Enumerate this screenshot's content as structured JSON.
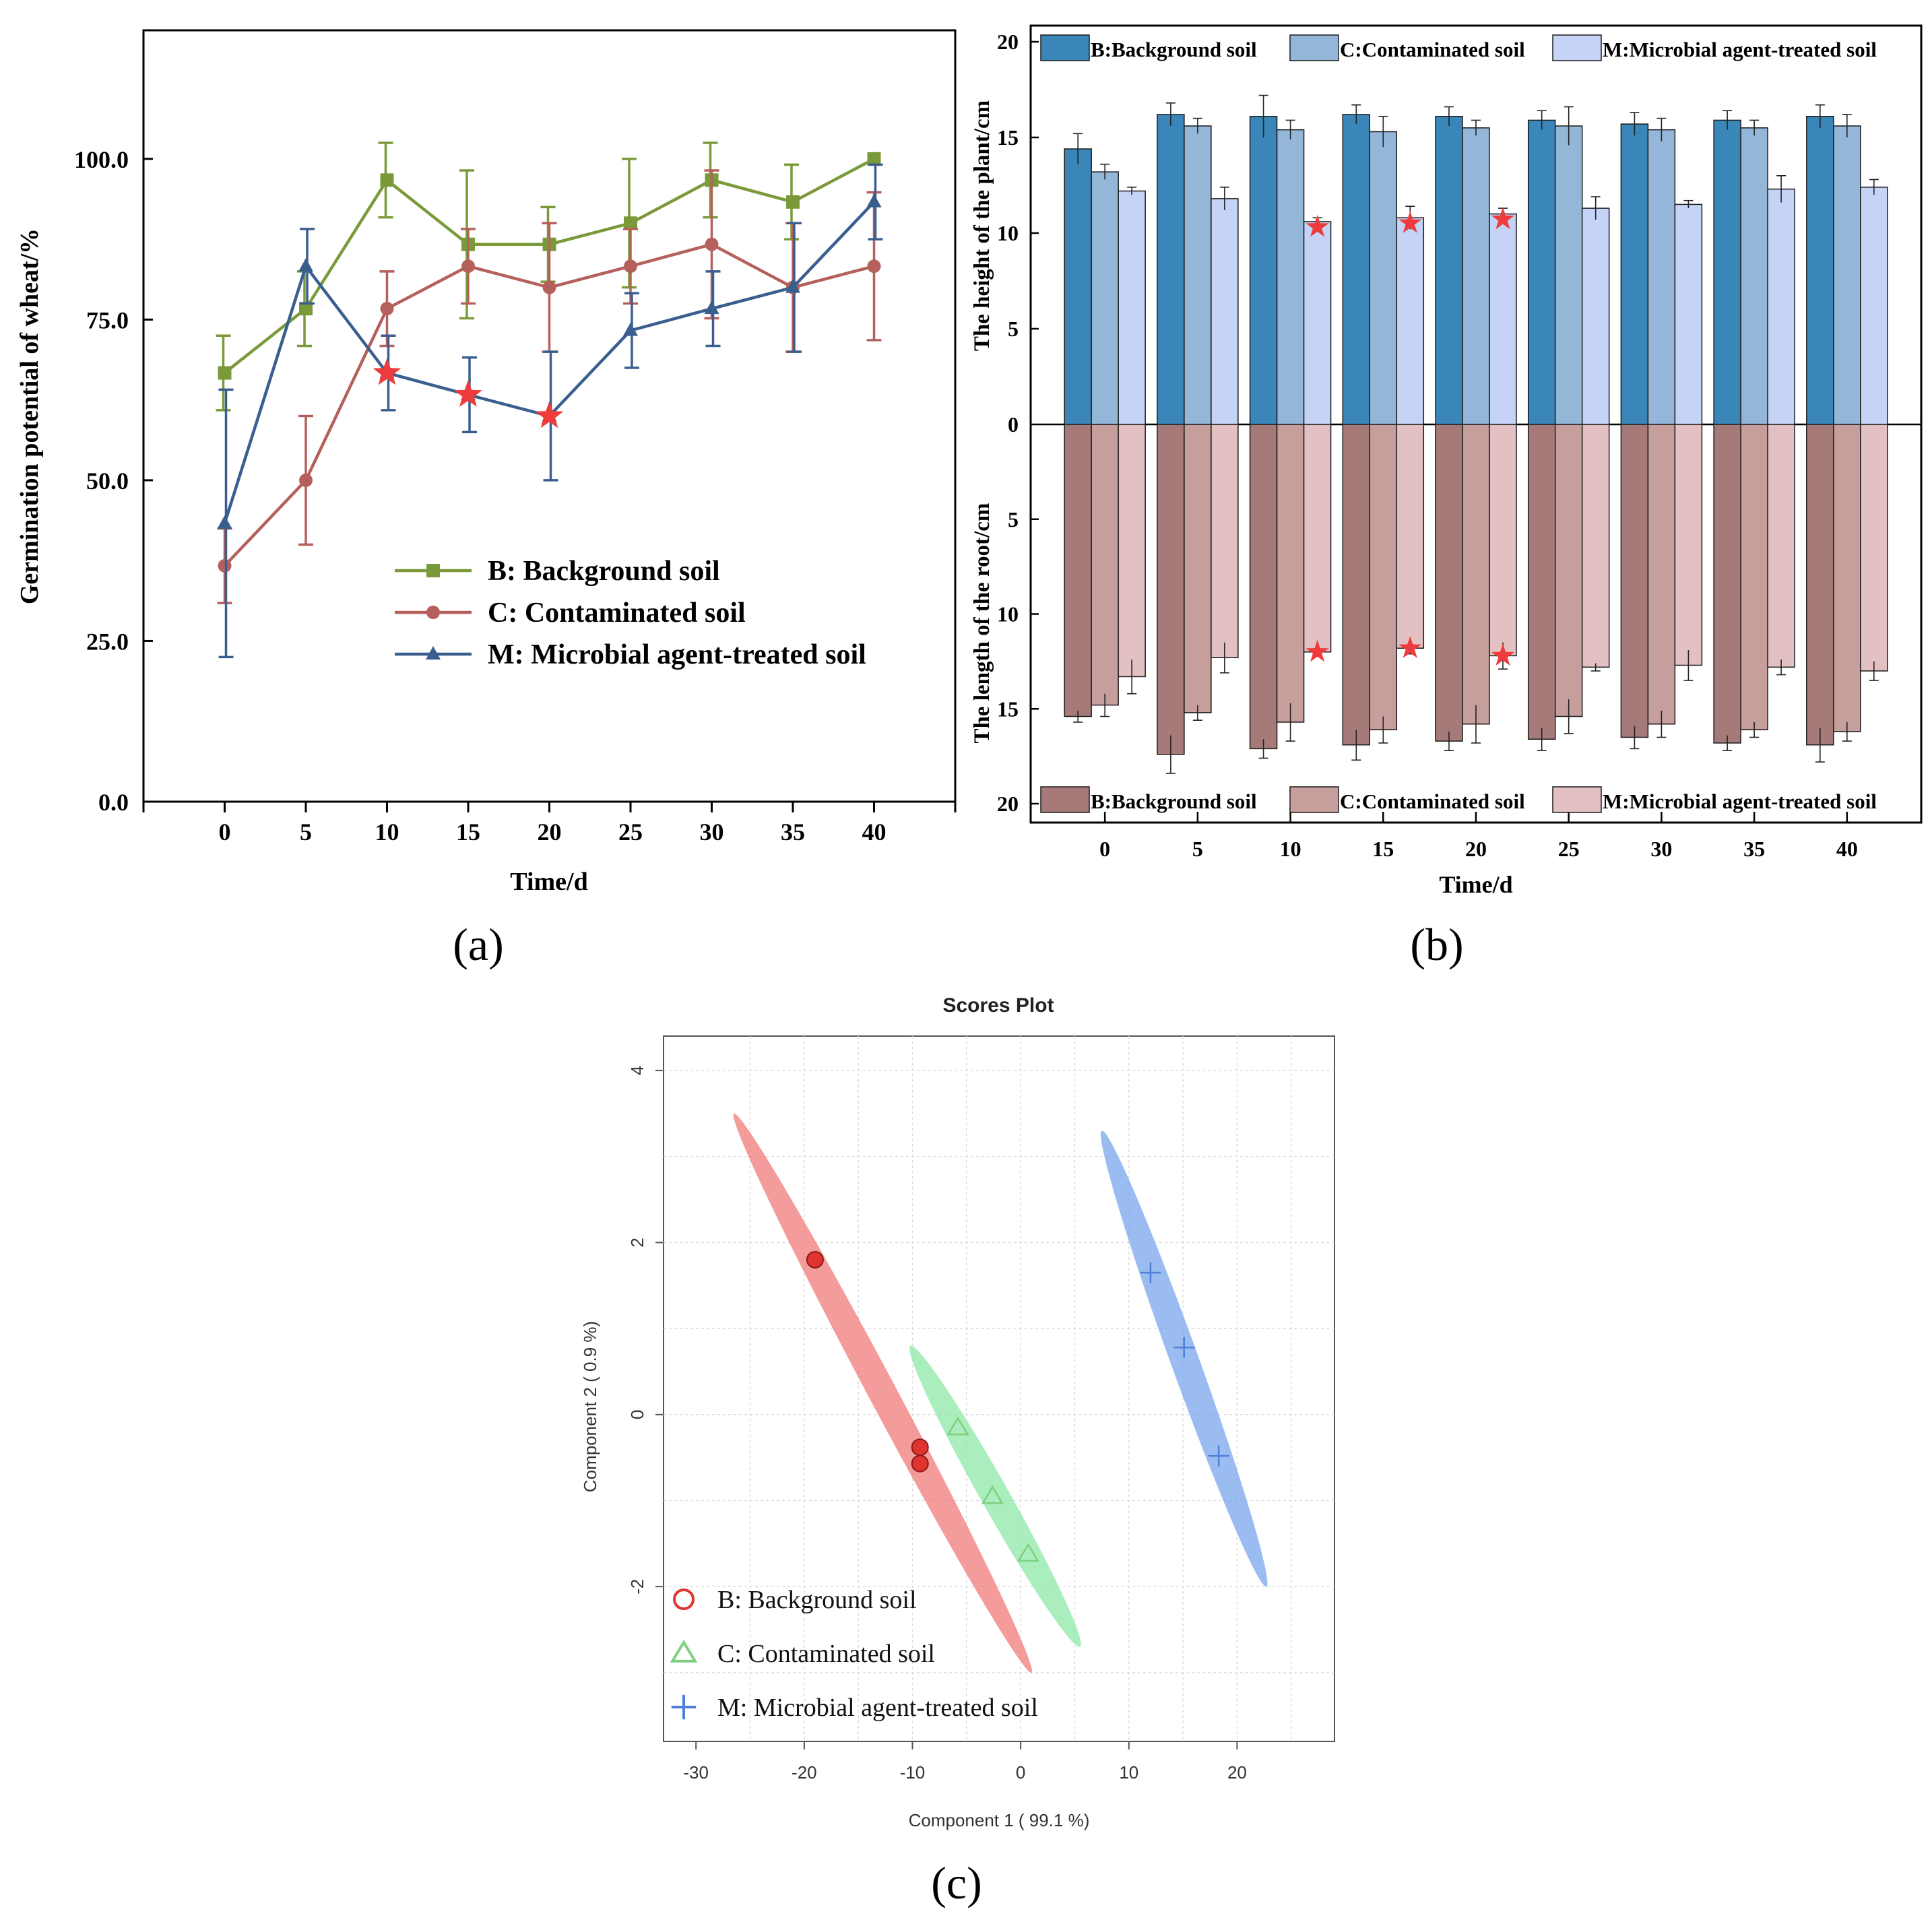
{
  "figure_labels": [
    "(a)",
    "(b)",
    "(c)"
  ],
  "chart_data": [
    {
      "id": "a",
      "type": "line",
      "title": "",
      "xlabel": "Time/d",
      "ylabel": "Germination potential of wheat/%",
      "x": [
        0,
        5,
        10,
        15,
        20,
        25,
        30,
        35,
        40
      ],
      "x_tick_labels": [
        "0",
        "5",
        "10",
        "15",
        "20",
        "25",
        "30",
        "35",
        "40"
      ],
      "xlim": [
        -5,
        45
      ],
      "ylim": [
        0,
        120
      ],
      "y_ticks": [
        0,
        25,
        50,
        75,
        100
      ],
      "y_tick_labels": [
        "0.0",
        "25.0",
        "50.0",
        "75.0",
        "100.0"
      ],
      "grid": false,
      "legend_position": "lower-right",
      "series": [
        {
          "name": "B: Background soil",
          "marker": "square",
          "color": "#7a9a3a",
          "values": [
            66.7,
            76.7,
            96.7,
            86.7,
            86.7,
            90.0,
            96.7,
            93.3,
            100.0
          ],
          "errors": [
            5.8,
            5.8,
            5.8,
            11.5,
            5.8,
            10.0,
            5.8,
            5.8,
            0
          ]
        },
        {
          "name": "C: Contaminated soil",
          "marker": "circle",
          "color": "#b5605c",
          "values": [
            36.7,
            50.0,
            76.7,
            83.3,
            80.0,
            83.3,
            86.7,
            80.0,
            83.3
          ],
          "errors": [
            5.8,
            10.0,
            5.8,
            5.8,
            10.0,
            5.8,
            11.5,
            10.0,
            11.5
          ]
        },
        {
          "name": "M: Microbial agent-treated soil",
          "marker": "triangle",
          "color": "#3a5f8f",
          "values": [
            43.3,
            83.3,
            66.7,
            63.3,
            60.0,
            73.3,
            76.7,
            80.0,
            93.3
          ],
          "errors": [
            20.8,
            5.8,
            5.8,
            5.8,
            10.0,
            5.8,
            5.8,
            10.0,
            5.8
          ]
        }
      ],
      "annotations": [
        {
          "series": "M: Microbial agent-treated soil",
          "x": 10,
          "y": 66.7,
          "symbol": "star"
        },
        {
          "series": "M: Microbial agent-treated soil",
          "x": 15,
          "y": 63.3,
          "symbol": "star"
        },
        {
          "series": "M: Microbial agent-treated soil",
          "x": 20,
          "y": 60.0,
          "symbol": "star"
        }
      ]
    },
    {
      "id": "b",
      "type": "bar",
      "title": "",
      "xlabel": "Time/d",
      "ylabel_top": "The height of the plant/cm",
      "ylabel_bottom": "The length of the root/cm",
      "categories": [
        "0",
        "5",
        "10",
        "15",
        "20",
        "25",
        "30",
        "35",
        "40"
      ],
      "ylim_top": [
        0,
        20
      ],
      "ylim_bottom": [
        0,
        20
      ],
      "y_ticks": [
        0,
        5,
        10,
        15,
        20
      ],
      "y_tick_labels": [
        "0",
        "5",
        "10",
        "15",
        "20"
      ],
      "grid": false,
      "legend_position_top": "top",
      "legend_position_bottom": "bottom",
      "series_top": [
        {
          "name": "B:Background soil",
          "color": "#3a86b8",
          "values": [
            14.4,
            16.2,
            16.1,
            16.2,
            16.1,
            15.9,
            15.7,
            15.9,
            16.1
          ],
          "errors": [
            0.8,
            0.6,
            1.1,
            0.5,
            0.5,
            0.5,
            0.6,
            0.5,
            0.6
          ]
        },
        {
          "name": "C:Contaminated soil",
          "color": "#93b6d9",
          "values": [
            13.2,
            15.6,
            15.4,
            15.3,
            15.5,
            15.6,
            15.4,
            15.5,
            15.6
          ],
          "errors": [
            0.4,
            0.4,
            0.5,
            0.8,
            0.4,
            1.0,
            0.6,
            0.4,
            0.6
          ]
        },
        {
          "name": "M:Microbial agent-treated soil",
          "color": "#c5d4f6",
          "values": [
            12.2,
            11.8,
            10.6,
            10.8,
            11.0,
            11.3,
            11.5,
            12.3,
            12.4
          ],
          "errors": [
            0.2,
            0.6,
            0.2,
            0.6,
            0.3,
            0.6,
            0.2,
            0.7,
            0.4
          ]
        }
      ],
      "series_bottom": [
        {
          "name": "B:Background soil",
          "color": "#a57a78",
          "values": [
            15.4,
            17.4,
            17.1,
            16.9,
            16.7,
            16.6,
            16.5,
            16.8,
            16.9
          ],
          "errors": [
            0.3,
            1.0,
            0.5,
            0.8,
            0.5,
            0.6,
            0.6,
            0.4,
            0.9
          ]
        },
        {
          "name": "C:Contaminated soil",
          "color": "#c69e9b",
          "values": [
            14.8,
            15.2,
            15.7,
            16.1,
            15.8,
            15.4,
            15.8,
            16.1,
            16.2
          ],
          "errors": [
            0.6,
            0.4,
            1.0,
            0.7,
            1.0,
            0.9,
            0.7,
            0.4,
            0.5
          ]
        },
        {
          "name": "M:Microbial agent-treated soil",
          "color": "#e3c1c2",
          "values": [
            13.3,
            12.3,
            12.0,
            11.8,
            12.2,
            12.8,
            12.7,
            12.8,
            13.0
          ],
          "errors": [
            0.9,
            0.8,
            0.2,
            0.3,
            0.7,
            0.2,
            0.8,
            0.4,
            0.5
          ]
        }
      ],
      "annotations": [
        {
          "panel": "top",
          "category": "10",
          "series": "M:Microbial agent-treated soil",
          "symbol": "star"
        },
        {
          "panel": "top",
          "category": "15",
          "series": "M:Microbial agent-treated soil",
          "symbol": "star"
        },
        {
          "panel": "top",
          "category": "20",
          "series": "M:Microbial agent-treated soil",
          "symbol": "star"
        },
        {
          "panel": "bottom",
          "category": "10",
          "series": "M:Microbial agent-treated soil",
          "symbol": "star"
        },
        {
          "panel": "bottom",
          "category": "15",
          "series": "M:Microbial agent-treated soil",
          "symbol": "star"
        },
        {
          "panel": "bottom",
          "category": "20",
          "series": "M:Microbial agent-treated soil",
          "symbol": "star"
        }
      ]
    },
    {
      "id": "c",
      "type": "scatter",
      "title": "Scores Plot",
      "xlabel": "Component 1 ( 99.1 %)",
      "ylabel": "Component 2 ( 0.9 %)",
      "xlim": [
        -33,
        29
      ],
      "ylim": [
        -3.8,
        4.4
      ],
      "x_ticks": [
        -30,
        -20,
        -10,
        0,
        10,
        20
      ],
      "x_tick_labels": [
        "-30",
        "-20",
        "-10",
        "0",
        "10",
        "20"
      ],
      "y_ticks": [
        -2,
        0,
        2,
        4
      ],
      "y_tick_labels": [
        "-2",
        "0",
        "2",
        "4"
      ],
      "grid": true,
      "legend_position": "bottom-left",
      "series": [
        {
          "name": "B: Background soil",
          "marker": "circle",
          "color": "#e0342f",
          "points": [
            [
              -19.0,
              1.8
            ],
            [
              -9.3,
              -0.38
            ],
            [
              -9.3,
              -0.57
            ]
          ],
          "ellipse": {
            "x": [
              -26.5,
              1.0
            ],
            "y": [
              3.5,
              -3.0
            ],
            "color": "#f07b7a"
          }
        },
        {
          "name": "C: Contaminated soil",
          "marker": "triangle",
          "color": "#7ecf7e",
          "points": [
            [
              -5.8,
              -0.15
            ],
            [
              -2.6,
              -0.95
            ],
            [
              0.7,
              -1.62
            ]
          ],
          "ellipse": {
            "x": [
              -10.2,
              5.5
            ],
            "y": [
              0.8,
              -2.7
            ],
            "color": "#8ee8a8"
          }
        },
        {
          "name": "M: Microbial agent-treated soil",
          "marker": "plus",
          "color": "#4f7fd6",
          "points": [
            [
              12.0,
              1.65
            ],
            [
              15.1,
              0.78
            ],
            [
              18.3,
              -0.48
            ]
          ],
          "ellipse": {
            "x": [
              7.5,
              22.7
            ],
            "y": [
              3.3,
              -2.0
            ],
            "color": "#7aa6ec"
          }
        }
      ]
    }
  ]
}
